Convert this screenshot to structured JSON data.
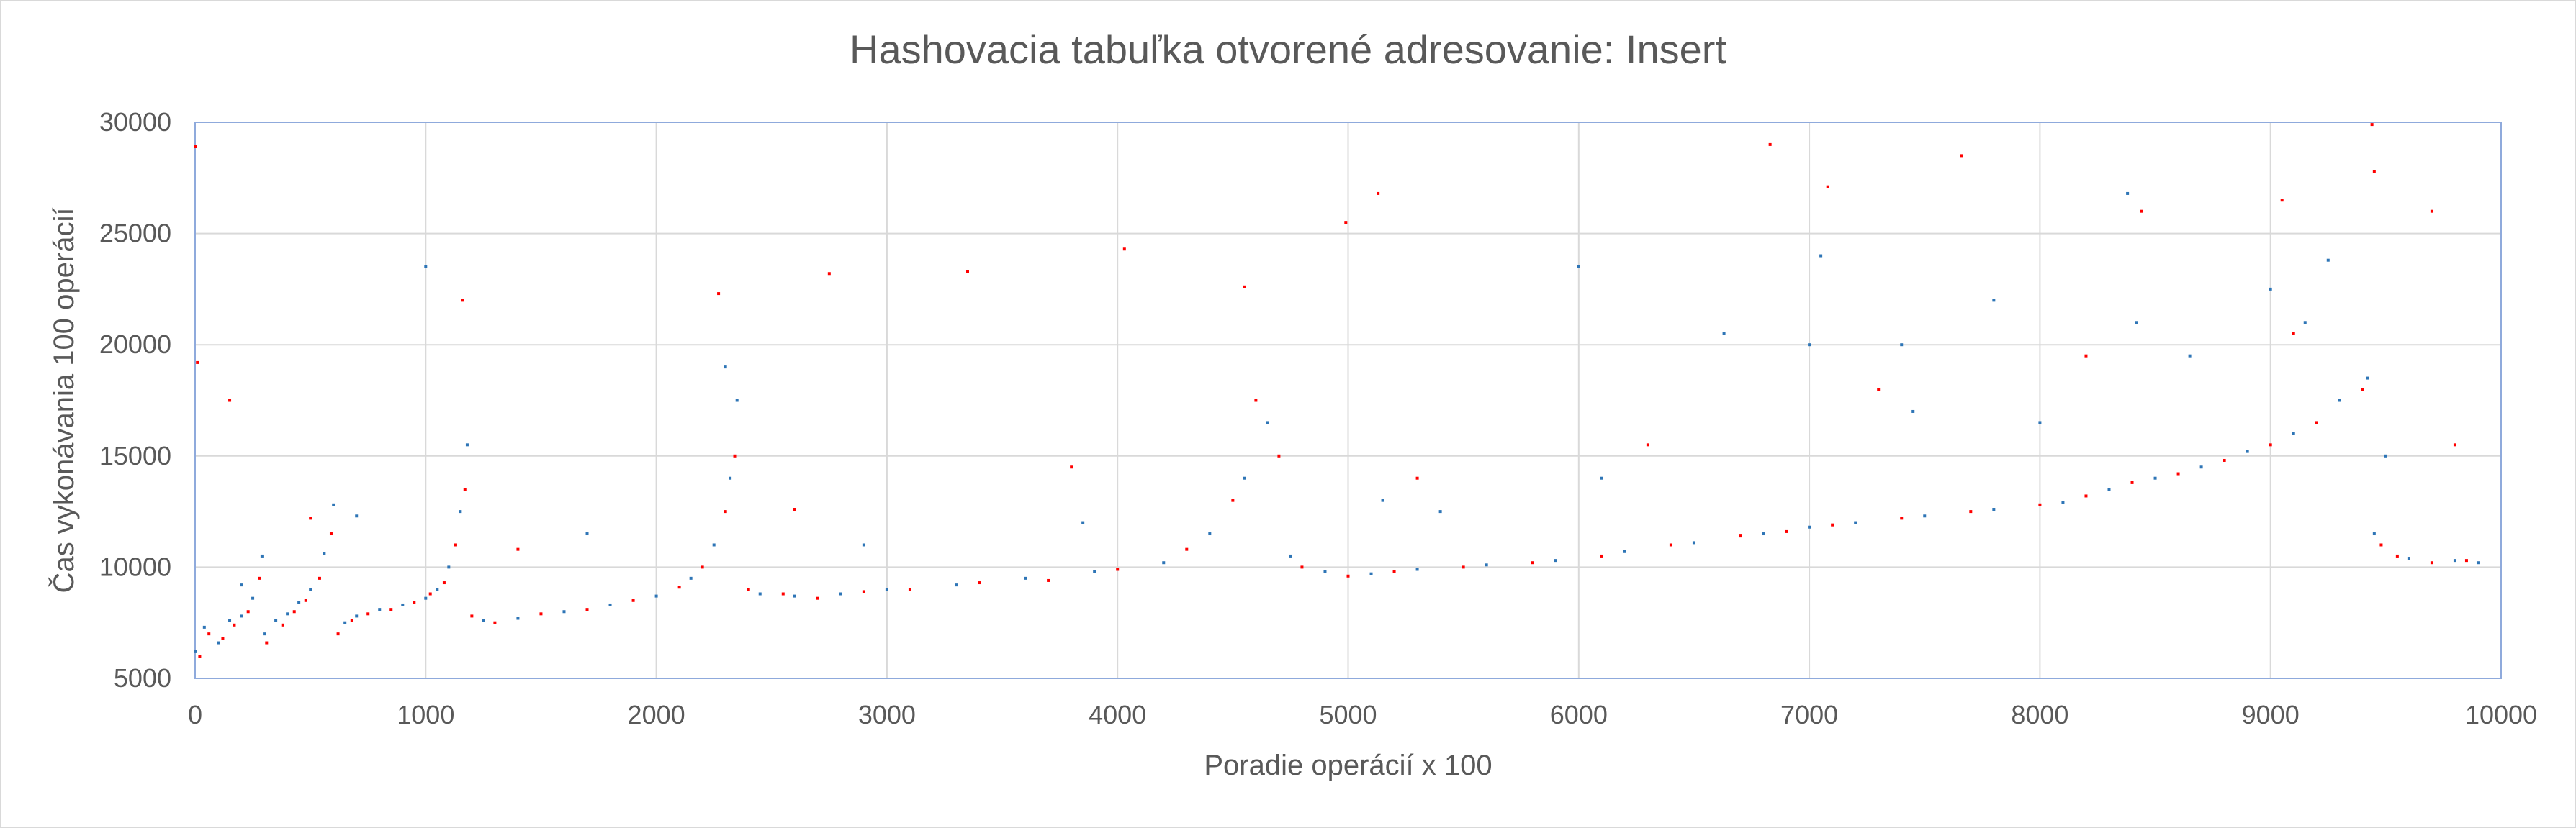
{
  "chart_data": {
    "type": "scatter",
    "title": "Hashovacia tabuľka otvorené adresovanie: Insert",
    "xlabel": "Poradie operácií x 100",
    "ylabel": "Čas vykonávania 100 operácií",
    "xlim": [
      0,
      10000
    ],
    "ylim": [
      5000,
      30000
    ],
    "x_ticks": [
      0,
      1000,
      2000,
      3000,
      4000,
      5000,
      6000,
      7000,
      8000,
      9000,
      10000
    ],
    "y_ticks": [
      5000,
      10000,
      15000,
      20000,
      25000,
      30000
    ],
    "x_tick_labels": [
      "0",
      "1000",
      "2000",
      "3000",
      "4000",
      "5000",
      "6000",
      "7000",
      "8000",
      "9000",
      "10000"
    ],
    "y_tick_labels": [
      "5000",
      "10000",
      "15000",
      "20000",
      "25000",
      "30000"
    ],
    "grid": true,
    "legend": "none",
    "series": [
      {
        "color": "#2e75b6",
        "points": [
          [
            0,
            6200
          ],
          [
            40,
            7300
          ],
          [
            100,
            6600
          ],
          [
            150,
            7600
          ],
          [
            200,
            7800
          ],
          [
            250,
            8600
          ],
          [
            290,
            10500
          ],
          [
            300,
            7000
          ],
          [
            350,
            7600
          ],
          [
            400,
            7900
          ],
          [
            450,
            8400
          ],
          [
            500,
            9000
          ],
          [
            560,
            10600
          ],
          [
            600,
            12800
          ],
          [
            650,
            7500
          ],
          [
            700,
            7800
          ],
          [
            800,
            8100
          ],
          [
            900,
            8300
          ],
          [
            1000,
            8600
          ],
          [
            1050,
            9000
          ],
          [
            1100,
            10000
          ],
          [
            1150,
            12500
          ],
          [
            1180,
            15500
          ],
          [
            1250,
            7600
          ],
          [
            1400,
            7700
          ],
          [
            1600,
            8000
          ],
          [
            1800,
            8300
          ],
          [
            2000,
            8700
          ],
          [
            2150,
            9500
          ],
          [
            2250,
            11000
          ],
          [
            2320,
            14000
          ],
          [
            2350,
            17500
          ],
          [
            2450,
            8800
          ],
          [
            2600,
            8700
          ],
          [
            2800,
            8800
          ],
          [
            3000,
            9000
          ],
          [
            3300,
            9200
          ],
          [
            3600,
            9500
          ],
          [
            3900,
            9800
          ],
          [
            4200,
            10200
          ],
          [
            4400,
            11500
          ],
          [
            4550,
            14000
          ],
          [
            4650,
            16500
          ],
          [
            4750,
            10500
          ],
          [
            4900,
            9800
          ],
          [
            5100,
            9700
          ],
          [
            5300,
            9900
          ],
          [
            5600,
            10100
          ],
          [
            5900,
            10300
          ],
          [
            6200,
            10700
          ],
          [
            6500,
            11100
          ],
          [
            6800,
            11500
          ],
          [
            7000,
            11800
          ],
          [
            7200,
            12000
          ],
          [
            7500,
            12300
          ],
          [
            7800,
            12600
          ],
          [
            8100,
            12900
          ],
          [
            8300,
            13500
          ],
          [
            8500,
            14000
          ],
          [
            8700,
            14500
          ],
          [
            8900,
            15200
          ],
          [
            9100,
            16000
          ],
          [
            9300,
            17500
          ],
          [
            9420,
            18500
          ],
          [
            9450,
            11500
          ],
          [
            9600,
            10400
          ],
          [
            9800,
            10300
          ],
          [
            9900,
            10200
          ],
          [
            1000,
            23500
          ],
          [
            2300,
            19000
          ],
          [
            5150,
            13000
          ],
          [
            6630,
            20500
          ],
          [
            7000,
            20000
          ],
          [
            7050,
            24000
          ],
          [
            7400,
            20000
          ],
          [
            7800,
            22000
          ],
          [
            8380,
            26800
          ],
          [
            8420,
            21000
          ],
          [
            8650,
            19500
          ],
          [
            9000,
            22500
          ],
          [
            9250,
            23800
          ],
          [
            6000,
            23500
          ],
          [
            200,
            9200
          ],
          [
            700,
            12300
          ],
          [
            1700,
            11500
          ],
          [
            2900,
            11000
          ],
          [
            3850,
            12000
          ],
          [
            5400,
            12500
          ],
          [
            6100,
            14000
          ],
          [
            7450,
            17000
          ],
          [
            8000,
            16500
          ],
          [
            9150,
            21000
          ],
          [
            9500,
            15000
          ]
        ]
      },
      {
        "color": "#ff0000",
        "points": [
          [
            0,
            28900
          ],
          [
            20,
            6000
          ],
          [
            60,
            7000
          ],
          [
            120,
            6800
          ],
          [
            170,
            7400
          ],
          [
            230,
            8000
          ],
          [
            280,
            9500
          ],
          [
            310,
            6600
          ],
          [
            380,
            7400
          ],
          [
            430,
            8000
          ],
          [
            480,
            8500
          ],
          [
            540,
            9500
          ],
          [
            590,
            11500
          ],
          [
            620,
            7000
          ],
          [
            680,
            7600
          ],
          [
            750,
            7900
          ],
          [
            850,
            8100
          ],
          [
            950,
            8400
          ],
          [
            1020,
            8800
          ],
          [
            1080,
            9300
          ],
          [
            1130,
            11000
          ],
          [
            1170,
            13500
          ],
          [
            1200,
            7800
          ],
          [
            1300,
            7500
          ],
          [
            1500,
            7900
          ],
          [
            1700,
            8100
          ],
          [
            1900,
            8500
          ],
          [
            2100,
            9100
          ],
          [
            2200,
            10000
          ],
          [
            2300,
            12500
          ],
          [
            2340,
            15000
          ],
          [
            2400,
            9000
          ],
          [
            2550,
            8800
          ],
          [
            2700,
            8600
          ],
          [
            2900,
            8900
          ],
          [
            3100,
            9000
          ],
          [
            3400,
            9300
          ],
          [
            3700,
            9400
          ],
          [
            4000,
            9900
          ],
          [
            4300,
            10800
          ],
          [
            4500,
            13000
          ],
          [
            4600,
            17500
          ],
          [
            4700,
            15000
          ],
          [
            4800,
            10000
          ],
          [
            5000,
            9600
          ],
          [
            5200,
            9800
          ],
          [
            5500,
            10000
          ],
          [
            5800,
            10200
          ],
          [
            6100,
            10500
          ],
          [
            6400,
            11000
          ],
          [
            6700,
            11400
          ],
          [
            6900,
            11600
          ],
          [
            7100,
            11900
          ],
          [
            7400,
            12200
          ],
          [
            7700,
            12500
          ],
          [
            8000,
            12800
          ],
          [
            8200,
            13200
          ],
          [
            8400,
            13800
          ],
          [
            8600,
            14200
          ],
          [
            8800,
            14800
          ],
          [
            9000,
            15500
          ],
          [
            9200,
            16500
          ],
          [
            9400,
            18000
          ],
          [
            9440,
            29900
          ],
          [
            9480,
            11000
          ],
          [
            9550,
            10500
          ],
          [
            9700,
            10200
          ],
          [
            9850,
            10300
          ],
          [
            10,
            19200
          ],
          [
            150,
            17500
          ],
          [
            1160,
            22000
          ],
          [
            2270,
            22300
          ],
          [
            4030,
            24300
          ],
          [
            4550,
            22600
          ],
          [
            4990,
            25500
          ],
          [
            5130,
            26800
          ],
          [
            6830,
            29000
          ],
          [
            7080,
            27100
          ],
          [
            7660,
            28500
          ],
          [
            8440,
            26000
          ],
          [
            9050,
            26500
          ],
          [
            9450,
            27800
          ],
          [
            9700,
            26000
          ],
          [
            3350,
            23300
          ],
          [
            2750,
            23200
          ],
          [
            500,
            12200
          ],
          [
            1400,
            10800
          ],
          [
            2600,
            12600
          ],
          [
            3800,
            14500
          ],
          [
            5300,
            14000
          ],
          [
            6300,
            15500
          ],
          [
            7300,
            18000
          ],
          [
            8200,
            19500
          ],
          [
            9100,
            20500
          ],
          [
            9800,
            15500
          ]
        ]
      }
    ]
  }
}
